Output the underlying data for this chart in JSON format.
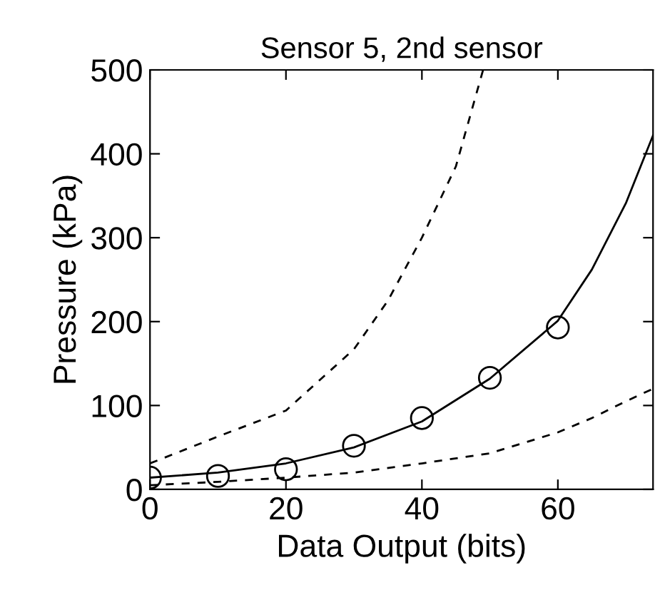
{
  "chart_data": {
    "type": "line",
    "title": "Sensor 5, 2nd sensor",
    "xlabel": "Data Output (bits)",
    "ylabel": "Pressure (kPa)",
    "xlim": [
      0,
      74
    ],
    "xticks": [
      0,
      20,
      40,
      60
    ],
    "ylim": [
      0,
      500
    ],
    "yticks": [
      0,
      100,
      200,
      300,
      400,
      500
    ],
    "grid": false,
    "legend": false,
    "series": [
      {
        "type": "scatter",
        "color": "#000000",
        "marker": "circle",
        "x": [
          0,
          10,
          20,
          30,
          40,
          50,
          60
        ],
        "values": [
          14,
          16,
          24,
          52,
          85,
          133,
          193
        ]
      },
      {
        "color": "#000000",
        "line_style": "solid",
        "x": [
          0,
          10,
          20,
          30,
          40,
          50,
          60,
          65,
          70,
          74
        ],
        "values": [
          14,
          20,
          31,
          50,
          81,
          132,
          201,
          262,
          341,
          422
        ]
      },
      {
        "color": "#000000",
        "line_style": "dashed",
        "x": [
          0,
          10,
          20,
          30,
          35,
          40,
          45,
          49
        ],
        "values": [
          31,
          63,
          94,
          167,
          225,
          300,
          385,
          500
        ]
      },
      {
        "color": "#000000",
        "line_style": "dashed",
        "x": [
          0,
          10,
          20,
          30,
          40,
          50,
          60,
          65,
          70,
          74
        ],
        "values": [
          5,
          9,
          14,
          20,
          31,
          43,
          68,
          85,
          105,
          120
        ]
      }
    ]
  }
}
